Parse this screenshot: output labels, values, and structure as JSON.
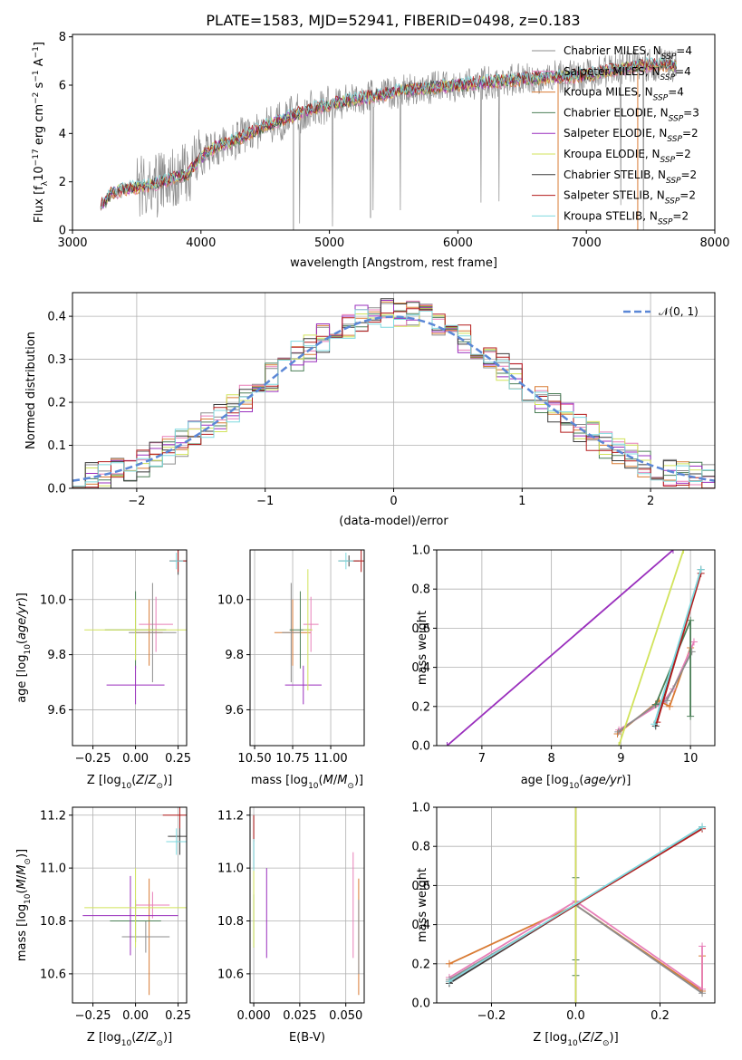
{
  "figure": {
    "title": "PLATE=1583, MJD=52941, FIBERID=0498, z=0.183"
  },
  "series_styles": [
    {
      "key": "chabrier_miles",
      "color": "#8c8c8c"
    },
    {
      "key": "salpeter_miles",
      "color": "#e87fb8"
    },
    {
      "key": "kroupa_miles",
      "color": "#d97b34"
    },
    {
      "key": "chabrier_elodie",
      "color": "#4b7f57"
    },
    {
      "key": "salpeter_elodie",
      "color": "#9a2fbd"
    },
    {
      "key": "kroupa_elodie",
      "color": "#d1e35a"
    },
    {
      "key": "chabrier_stelib",
      "color": "#3b3b3b"
    },
    {
      "key": "salpeter_stelib",
      "color": "#b31b1b"
    },
    {
      "key": "kroupa_stelib",
      "color": "#7fd9df"
    }
  ],
  "chart_data": [
    {
      "id": "spectrum",
      "type": "line",
      "xlabel": "wavelength [Angstrom, rest frame]",
      "ylabel": "Flux [f_λ 10^-17 erg cm^-2 s^-1 A^-1]",
      "xlim": [
        3000,
        8000
      ],
      "ylim": [
        0,
        8.1
      ],
      "xticks": [
        "3000",
        "4000",
        "5000",
        "6000",
        "7000",
        "8000"
      ],
      "yticks": [
        "0",
        "2",
        "4",
        "6",
        "8"
      ],
      "legend": [
        {
          "label": "Chabrier MILES, N",
          "sub": "SSP",
          "tail": "=4"
        },
        {
          "label": "Salpeter MILES, N",
          "sub": "SSP",
          "tail": "=4"
        },
        {
          "label": "Kroupa MILES, N",
          "sub": "SSP",
          "tail": "=4"
        },
        {
          "label": "Chabrier ELODIE, N",
          "sub": "SSP",
          "tail": "=3"
        },
        {
          "label": "Salpeter ELODIE, N",
          "sub": "SSP",
          "tail": "=2"
        },
        {
          "label": "Kroupa ELODIE, N",
          "sub": "SSP",
          "tail": "=2"
        },
        {
          "label": "Chabrier STELIB, N",
          "sub": "SSP",
          "tail": "=2"
        },
        {
          "label": "Salpeter STELIB, N",
          "sub": "SSP",
          "tail": "=2"
        },
        {
          "label": "Kroupa STELIB, N",
          "sub": "SSP",
          "tail": "=2"
        }
      ],
      "legend_position": "right",
      "model_continuum": [
        [
          3220,
          1.0
        ],
        [
          3300,
          1.5
        ],
        [
          3400,
          1.7
        ],
        [
          3500,
          1.75
        ],
        [
          3600,
          1.85
        ],
        [
          3700,
          2.0
        ],
        [
          3800,
          2.2
        ],
        [
          3900,
          2.3
        ],
        [
          4000,
          3.0
        ],
        [
          4100,
          3.4
        ],
        [
          4300,
          3.8
        ],
        [
          4500,
          4.3
        ],
        [
          4800,
          4.9
        ],
        [
          5000,
          5.2
        ],
        [
          5300,
          5.5
        ],
        [
          5600,
          5.8
        ],
        [
          6000,
          6.0
        ],
        [
          6400,
          6.2
        ],
        [
          6800,
          6.35
        ],
        [
          7000,
          6.4
        ],
        [
          7200,
          6.6
        ],
        [
          7400,
          6.8
        ],
        [
          7600,
          6.85
        ],
        [
          7700,
          6.8
        ]
      ]
    },
    {
      "id": "residual-histogram",
      "type": "line",
      "xlabel": "(data-model)/error",
      "ylabel": "Normed distribution",
      "xlim": [
        -2.5,
        2.5
      ],
      "ylim": [
        0,
        0.455
      ],
      "xticks": [
        "−2",
        "−1",
        "0",
        "1",
        "2"
      ],
      "yticks": [
        "0.0",
        "0.1",
        "0.2",
        "0.3",
        "0.4"
      ],
      "legend": [
        {
          "label": "𝒩(0, 1)"
        }
      ],
      "legend_position": "top-right",
      "gaussian": {
        "mean": 0,
        "sigma": 1,
        "color": "#5b87d6"
      }
    },
    {
      "id": "z-age",
      "type": "scatter",
      "xlabel": "Z [log10(Z/Z⊙)]",
      "ylabel": "age  [log10(age/yr)]",
      "xlim": [
        -0.37,
        0.3
      ],
      "ylim": [
        9.47,
        10.18
      ],
      "xticks": [
        "−0.25",
        "0.00",
        "0.25"
      ],
      "yticks": [
        "9.6",
        "9.8",
        "10.0"
      ],
      "points": [
        {
          "x": 0.08,
          "y": 9.88,
          "ex": 0.08,
          "ey": 0.12,
          "s": 2
        },
        {
          "x": 0.12,
          "y": 9.91,
          "ex": 0.1,
          "ey": 0.1,
          "s": 1
        },
        {
          "x": 0.1,
          "y": 9.88,
          "ex": 0.14,
          "ey": 0.18,
          "s": 0
        },
        {
          "x": 0.0,
          "y": 9.89,
          "ex": 0.18,
          "ey": 0.14,
          "s": 3
        },
        {
          "x": 0.0,
          "y": 9.69,
          "ex": 0.17,
          "ey": 0.07,
          "s": 4
        },
        {
          "x": 0.0,
          "y": 9.89,
          "ex": 0.3,
          "ey": 0.11,
          "s": 5
        },
        {
          "x": 0.25,
          "y": 10.14,
          "ex": 0.05,
          "ey": 0.05,
          "s": 6
        },
        {
          "x": 0.25,
          "y": 10.14,
          "ex": 0.05,
          "ey": 0.04,
          "s": 7
        },
        {
          "x": 0.24,
          "y": 10.14,
          "ex": 0.04,
          "ey": 0.03,
          "s": 8
        }
      ]
    },
    {
      "id": "mass-age",
      "type": "scatter",
      "xlabel": "mass [log10(M/M⊙)]",
      "ylabel": "",
      "xlim": [
        10.47,
        11.22
      ],
      "ylim": [
        9.47,
        10.18
      ],
      "xticks": [
        "10.50",
        "10.75",
        "11.00"
      ],
      "yticks": [
        "9.6",
        "9.8",
        "10.0"
      ],
      "points": [
        {
          "x": 10.75,
          "y": 9.88,
          "ex": 0.12,
          "ey": 0.12,
          "s": 2
        },
        {
          "x": 10.87,
          "y": 9.91,
          "ex": 0.05,
          "ey": 0.1,
          "s": 1
        },
        {
          "x": 10.74,
          "y": 9.88,
          "ex": 0.06,
          "ey": 0.18,
          "s": 0
        },
        {
          "x": 10.8,
          "y": 9.89,
          "ex": 0.07,
          "ey": 0.14,
          "s": 3
        },
        {
          "x": 10.82,
          "y": 9.69,
          "ex": 0.12,
          "ey": 0.07,
          "s": 4
        },
        {
          "x": 10.85,
          "y": 9.89,
          "ex": 0.03,
          "ey": 0.22,
          "s": 5
        },
        {
          "x": 11.12,
          "y": 10.14,
          "ex": 0.07,
          "ey": 0.02,
          "s": 6
        },
        {
          "x": 11.2,
          "y": 10.14,
          "ex": 0.06,
          "ey": 0.04,
          "s": 7
        },
        {
          "x": 11.1,
          "y": 10.14,
          "ex": 0.05,
          "ey": 0.03,
          "s": 8
        }
      ]
    },
    {
      "id": "age-massweight",
      "type": "line",
      "xlabel": "age  [log10(age/yr)]",
      "ylabel": "mass weight",
      "xlim": [
        6.35,
        10.35
      ],
      "ylim": [
        0,
        1.0
      ],
      "xticks": [
        "7",
        "8",
        "9",
        "10"
      ],
      "yticks": [
        "0.0",
        "0.2",
        "0.4",
        "0.6",
        "0.8",
        "1.0"
      ],
      "series": [
        {
          "s": 2,
          "x": [
            8.95,
            9.55,
            9.7,
            10.0
          ],
          "y": [
            0.06,
            0.23,
            0.2,
            0.5
          ]
        },
        {
          "s": 1,
          "x": [
            8.97,
            9.6,
            9.75,
            10.05
          ],
          "y": [
            0.08,
            0.22,
            0.29,
            0.53
          ]
        },
        {
          "s": 0,
          "x": [
            8.96,
            9.5,
            9.66,
            10.02
          ],
          "y": [
            0.07,
            0.21,
            0.23,
            0.48
          ]
        },
        {
          "s": 3,
          "x": [
            9.5,
            10.0,
            10.0
          ],
          "y": [
            0.21,
            0.64,
            0.15
          ]
        },
        {
          "s": 4,
          "x": [
            6.5,
            9.75
          ],
          "y": [
            0.0,
            1.0
          ]
        },
        {
          "s": 5,
          "x": [
            8.97,
            9.9
          ],
          "y": [
            0.0,
            1.0
          ]
        },
        {
          "s": 6,
          "x": [
            9.5,
            10.15
          ],
          "y": [
            0.1,
            0.9
          ]
        },
        {
          "s": 7,
          "x": [
            9.52,
            10.15
          ],
          "y": [
            0.12,
            0.88
          ]
        },
        {
          "s": 8,
          "x": [
            9.48,
            10.15
          ],
          "y": [
            0.11,
            0.9
          ]
        }
      ]
    },
    {
      "id": "z-mass",
      "type": "scatter",
      "xlabel": "Z [log10(Z/Z⊙)]",
      "ylabel": "mass [log10(M/M⊙)]",
      "xlim": [
        -0.37,
        0.3
      ],
      "ylim": [
        10.49,
        11.23
      ],
      "xticks": [
        "−0.25",
        "0.00",
        "0.25"
      ],
      "yticks": [
        "10.6",
        "10.8",
        "11.0",
        "11.2"
      ],
      "points": [
        {
          "x": 0.08,
          "y": 10.74,
          "ex": 0.11,
          "ey": 0.22,
          "s": 2
        },
        {
          "x": 0.1,
          "y": 10.86,
          "ex": 0.1,
          "ey": 0.05,
          "s": 1
        },
        {
          "x": 0.06,
          "y": 10.74,
          "ex": 0.14,
          "ey": 0.06,
          "s": 0
        },
        {
          "x": 0.0,
          "y": 10.8,
          "ex": 0.15,
          "ey": 0.08,
          "s": 3
        },
        {
          "x": -0.03,
          "y": 10.82,
          "ex": 0.28,
          "ey": 0.15,
          "s": 4
        },
        {
          "x": 0.0,
          "y": 10.85,
          "ex": 0.3,
          "ey": 0.15,
          "s": 5
        },
        {
          "x": 0.26,
          "y": 11.12,
          "ex": 0.07,
          "ey": 0.07,
          "s": 6
        },
        {
          "x": 0.26,
          "y": 11.2,
          "ex": 0.1,
          "ey": 0.05,
          "s": 7
        },
        {
          "x": 0.24,
          "y": 11.1,
          "ex": 0.06,
          "ey": 0.05,
          "s": 8
        }
      ]
    },
    {
      "id": "ebv-mass",
      "type": "scatter",
      "xlabel": "E(B-V)",
      "ylabel": "",
      "xlim": [
        -0.002,
        0.06
      ],
      "ylim": [
        10.49,
        11.23
      ],
      "xticks": [
        "0.000",
        "0.025",
        "0.050"
      ],
      "yticks": [
        "10.6",
        "10.8",
        "11.0",
        "11.2"
      ],
      "points": [
        {
          "x": 0.057,
          "y": 10.74,
          "ex": 0,
          "ey": 0.22,
          "s": 2
        },
        {
          "x": 0.054,
          "y": 10.86,
          "ex": 0,
          "ey": 0.2,
          "s": 1
        },
        {
          "x": 0.057,
          "y": 10.74,
          "ex": 0,
          "ey": 0.14,
          "s": 0
        },
        {
          "x": 0.0,
          "y": 10.8,
          "ex": 0,
          "ey": 0.1,
          "s": 3
        },
        {
          "x": 0.007,
          "y": 10.83,
          "ex": 0,
          "ey": 0.17,
          "s": 4
        },
        {
          "x": 0.0,
          "y": 10.85,
          "ex": 0,
          "ey": 0.15,
          "s": 5
        },
        {
          "x": 0.0,
          "y": 11.1,
          "ex": 0,
          "ey": 0.1,
          "s": 6
        },
        {
          "x": 0.0,
          "y": 11.15,
          "ex": 0,
          "ey": 0.05,
          "s": 7
        },
        {
          "x": 0.0,
          "y": 11.05,
          "ex": 0,
          "ey": 0.06,
          "s": 8
        }
      ]
    },
    {
      "id": "z-massweight",
      "type": "line",
      "xlabel": "Z [log10(Z/Z⊙)]",
      "ylabel": "mass weight",
      "xlim": [
        -0.33,
        0.33
      ],
      "ylim": [
        0,
        1.0
      ],
      "xticks": [
        "−0.2",
        "0.0",
        "0.2"
      ],
      "yticks": [
        "0.0",
        "0.2",
        "0.4",
        "0.6",
        "0.8",
        "1.0"
      ],
      "series": [
        {
          "s": 2,
          "x": [
            -0.3,
            0.0,
            0.3,
            0.3
          ],
          "y": [
            0.2,
            0.5,
            0.06,
            0.24
          ]
        },
        {
          "s": 1,
          "x": [
            -0.3,
            0.0,
            0.3,
            0.3
          ],
          "y": [
            0.13,
            0.52,
            0.07,
            0.29
          ]
        },
        {
          "s": 0,
          "x": [
            -0.3,
            0.0,
            0.3
          ],
          "y": [
            0.12,
            0.5,
            0.05
          ]
        },
        {
          "s": 3,
          "x": [
            0.0,
            0.0,
            0.0
          ],
          "y": [
            0.14,
            0.22,
            0.64
          ]
        },
        {
          "s": 4,
          "x": [
            0.0,
            0.0
          ],
          "y": [
            0.0,
            1.0
          ]
        },
        {
          "s": 5,
          "x": [
            0.0,
            0.0
          ],
          "y": [
            0.0,
            1.0
          ]
        },
        {
          "s": 6,
          "x": [
            -0.3,
            0.3
          ],
          "y": [
            0.1,
            0.9
          ]
        },
        {
          "s": 7,
          "x": [
            -0.3,
            0.3
          ],
          "y": [
            0.11,
            0.89
          ]
        },
        {
          "s": 8,
          "x": [
            -0.3,
            0.3
          ],
          "y": [
            0.11,
            0.9
          ]
        }
      ]
    }
  ]
}
